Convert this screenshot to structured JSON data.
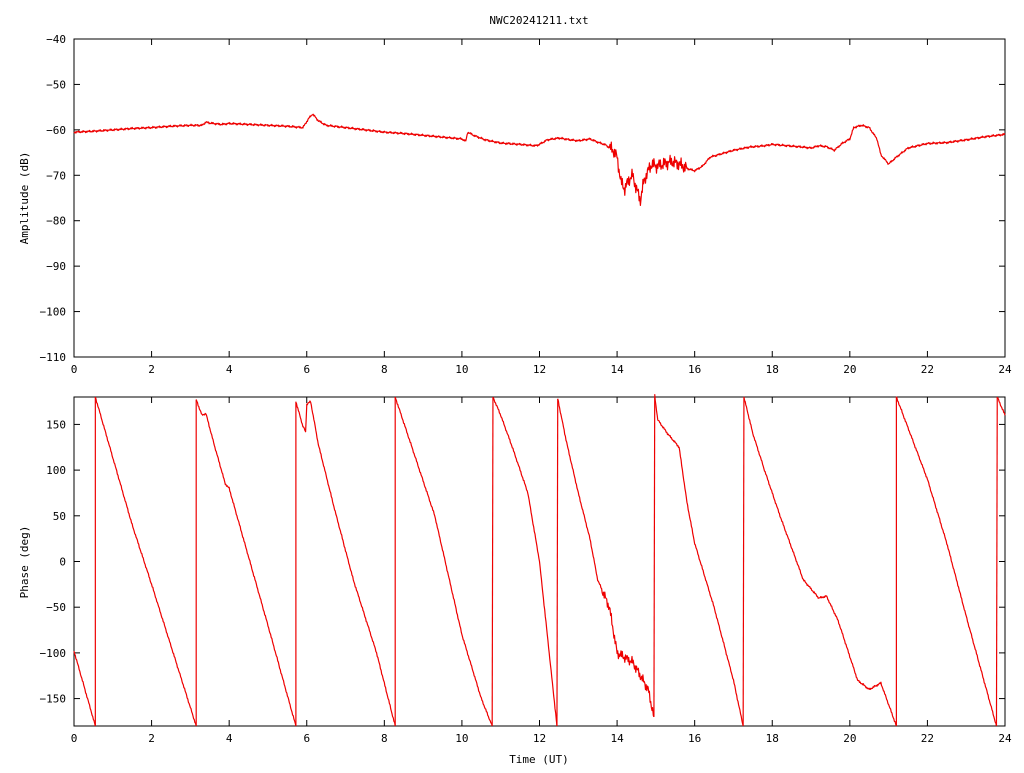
{
  "colors": {
    "trace": "#ee0000",
    "axes": "#000000",
    "background": "#ffffff"
  },
  "chart_data": [
    {
      "type": "line",
      "title": "NWC20241211.txt",
      "xlabel": "",
      "ylabel": "Amplitude (dB)",
      "xlim": [
        0,
        24
      ],
      "ylim": [
        -110,
        -40
      ],
      "xticks": [
        "0",
        "2",
        "4",
        "6",
        "8",
        "10",
        "12",
        "14",
        "16",
        "18",
        "20",
        "22",
        "24"
      ],
      "yticks": [
        "-110",
        "-100",
        "-90",
        "-80",
        "-70",
        "-60",
        "-50",
        "-40"
      ],
      "grid": false,
      "series": [
        {
          "x": [
            0,
            0.5,
            1,
            1.5,
            2,
            2.5,
            3,
            3.3,
            3.4,
            3.5,
            3.8,
            4,
            4.5,
            5,
            5.5,
            5.9,
            6.05,
            6.15,
            6.3,
            6.5,
            6.8,
            7,
            7.5,
            8,
            8.5,
            9,
            9.5,
            10,
            10.1,
            10.15,
            10.3,
            10.6,
            11,
            11.5,
            11.9,
            12,
            12.2,
            12.5,
            12.8,
            13,
            13.3,
            13.5,
            13.7,
            13.9,
            14,
            14.1,
            14.2,
            14.3,
            14.4,
            14.5,
            14.6,
            14.7,
            14.8,
            14.9,
            15,
            15.2,
            15.4,
            15.6,
            15.8,
            16,
            16.2,
            16.4,
            16.8,
            17,
            17.4,
            17.8,
            18,
            18.4,
            18.8,
            19,
            19.2,
            19.4,
            19.6,
            19.8,
            20,
            20.1,
            20.3,
            20.5,
            20.7,
            20.8,
            21,
            21.2,
            21.5,
            22,
            22.5,
            23,
            23.5,
            24
          ],
          "y": [
            -60.5,
            -60.3,
            -60,
            -59.7,
            -59.5,
            -59.2,
            -59,
            -59,
            -58.3,
            -58.5,
            -58.8,
            -58.6,
            -58.8,
            -59,
            -59.2,
            -59.5,
            -57.5,
            -56.5,
            -58,
            -59,
            -59.3,
            -59.5,
            -60,
            -60.5,
            -60.8,
            -61.2,
            -61.6,
            -62,
            -62.5,
            -60.5,
            -61.2,
            -62.2,
            -62.9,
            -63.2,
            -63.5,
            -63.2,
            -62.2,
            -61.8,
            -62.2,
            -62.4,
            -62,
            -62.7,
            -63.3,
            -64.5,
            -66,
            -71.5,
            -73,
            -71,
            -70,
            -73,
            -75.5,
            -71,
            -69,
            -67.5,
            -68,
            -67.5,
            -67,
            -67.5,
            -68.5,
            -69,
            -68,
            -66,
            -65,
            -64.5,
            -63.8,
            -63.5,
            -63.2,
            -63.5,
            -63.8,
            -64,
            -63.5,
            -63.7,
            -64.5,
            -63,
            -62,
            -59.5,
            -59,
            -59.5,
            -62,
            -65.5,
            -67.5,
            -66,
            -64,
            -63,
            -62.8,
            -62.2,
            -61.5,
            -61
          ]
        }
      ]
    },
    {
      "type": "line",
      "title": "",
      "xlabel": "Time (UT)",
      "ylabel": "Phase (deg)",
      "xlim": [
        0,
        24
      ],
      "ylim": [
        -180,
        180
      ],
      "xticks": [
        "0",
        "2",
        "4",
        "6",
        "8",
        "10",
        "12",
        "14",
        "16",
        "18",
        "20",
        "22",
        "24"
      ],
      "yticks": [
        "-150",
        "-100",
        "-50",
        "0",
        "50",
        "100",
        "150"
      ],
      "grid": false,
      "series": [
        {
          "segments": [
            {
              "x": [
                0,
                0.55
              ],
              "y": [
                -98,
                -180
              ]
            },
            {
              "x": [
                0.55,
                1.5,
                2.0,
                3.15
              ],
              "y": [
                180,
                40,
                -25,
                -180
              ]
            },
            {
              "x": [
                3.15,
                3.3,
                3.4,
                3.6,
                3.9,
                4.0,
                4.4,
                5.0,
                5.72
              ],
              "y": [
                177,
                160,
                162,
                130,
                85,
                80,
                20,
                -70,
                -180
              ]
            },
            {
              "x": [
                5.72,
                5.9,
                5.97,
                6.0,
                6.1,
                6.3,
                6.7,
                7.2,
                7.8,
                8.28
              ],
              "y": [
                175,
                148,
                142,
                172,
                175,
                128,
                60,
                -20,
                -100,
                -180
              ]
            },
            {
              "x": [
                8.28,
                9.3,
                10.0,
                10.5,
                10.78
              ],
              "y": [
                180,
                50,
                -80,
                -150,
                -180
              ]
            },
            {
              "x": [
                10.8,
                11.0,
                11.3,
                11.7,
                12.0,
                12.45
              ],
              "y": [
                180,
                160,
                125,
                75,
                0,
                -180
              ]
            },
            {
              "x": [
                12.47,
                12.7,
                13.0,
                13.3,
                13.5,
                13.8,
                14.0,
                14.2,
                14.4,
                14.6,
                14.8,
                14.95
              ],
              "y": [
                178,
                130,
                75,
                25,
                -20,
                -50,
                -100,
                -105,
                -110,
                -125,
                -140,
                -170
              ]
            },
            {
              "x": [
                14.97,
                15.05,
                15.3,
                15.6,
                15.8,
                16.0,
                16.5,
                17.0,
                17.25
              ],
              "y": [
                180,
                155,
                140,
                125,
                65,
                20,
                -50,
                -130,
                -180
              ]
            },
            {
              "x": [
                17.27,
                17.5,
                17.8,
                18.2,
                18.8,
                19.2,
                19.4,
                19.7,
                20.2,
                20.5,
                20.8,
                21.2
              ],
              "y": [
                180,
                140,
                100,
                50,
                -20,
                -40,
                -38,
                -65,
                -130,
                -140,
                -133,
                -180
              ]
            },
            {
              "x": [
                21.2,
                22.0,
                22.5,
                23.0,
                23.78
              ],
              "y": [
                180,
                90,
                20,
                -60,
                -180
              ]
            },
            {
              "x": [
                23.8,
                24.0
              ],
              "y": [
                180,
                160
              ]
            }
          ]
        }
      ]
    }
  ]
}
